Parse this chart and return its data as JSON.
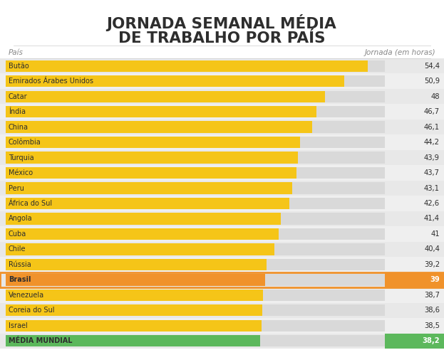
{
  "title_line1": "JORNADA SEMANAL MÉDIA",
  "title_line2": "DE TRABALHO POR PAÍS",
  "col_label_left": "País",
  "col_label_right": "Jornada (em horas)",
  "categories": [
    "Butão",
    "Emirados Árabes Unidos",
    "Catar",
    "Índia",
    "China",
    "Colômbia",
    "Turquia",
    "México",
    "Peru",
    "África do Sul",
    "Angola",
    "Cuba",
    "Chile",
    "Rússia",
    "Brasil",
    "Venezuela",
    "Coreia do Sul",
    "Israel",
    "MÉDIA MUNDIAL"
  ],
  "values": [
    54.4,
    50.9,
    48,
    46.7,
    46.1,
    44.2,
    43.9,
    43.7,
    43.1,
    42.6,
    41.4,
    41,
    40.4,
    39.2,
    39,
    38.7,
    38.6,
    38.5,
    38.2
  ],
  "value_labels": [
    "54,4",
    "50,9",
    "48",
    "46,7",
    "46,1",
    "44,2",
    "43,9",
    "43,7",
    "43,1",
    "42,6",
    "41,4",
    "41",
    "40,4",
    "39,2",
    "39",
    "38,7",
    "38,6",
    "38,5",
    "38,2"
  ],
  "bar_colors": [
    "#F5C518",
    "#F5C518",
    "#F5C518",
    "#F5C518",
    "#F5C518",
    "#F5C518",
    "#F5C518",
    "#F5C518",
    "#F5C518",
    "#F5C518",
    "#F5C518",
    "#F5C518",
    "#F5C518",
    "#F5C518",
    "#F0922B",
    "#F5C518",
    "#F5C518",
    "#F5C518",
    "#5CB85C"
  ],
  "title_bg_color": "#ffffff",
  "chart_bg_color": "#ffffff",
  "bar_bg_color": "#d9d9d9",
  "max_value": 57,
  "title_color": "#2e2e2e",
  "header_color": "#888888",
  "label_color": "#2e2e2e",
  "value_color": "#2e2e2e",
  "row_colors": [
    "#e8e8e8",
    "#efefef"
  ],
  "brasil_bar_color": "#F0922B",
  "brasil_border_color": "#F0922B",
  "media_bar_color": "#5CB85C",
  "media_label_color": "#2e2e2e"
}
